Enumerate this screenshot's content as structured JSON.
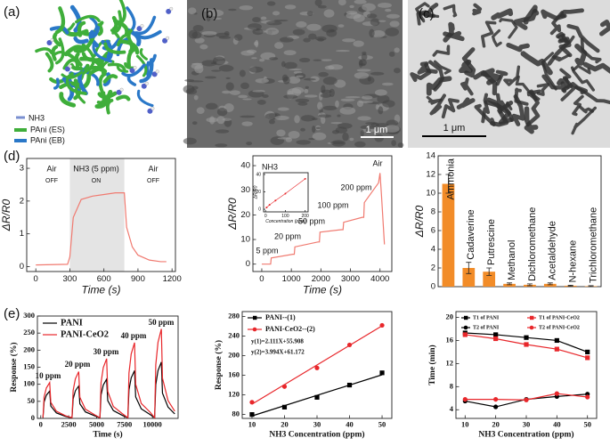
{
  "images": [
    {
      "label": "(a)",
      "legend": [
        "NH3",
        "PAni (ES)",
        "PAni (EB)"
      ]
    },
    {
      "label": "(b)",
      "scale_bar": "1 μm"
    },
    {
      "label": "(c)",
      "scale_bar": "1 μm"
    }
  ],
  "chart_data": [
    {
      "type": "line",
      "panel_label": "(d)",
      "xlabel": "Time (s)",
      "ylabel": "ΔR/R0",
      "x": [
        0,
        280,
        300,
        330,
        400,
        500,
        600,
        700,
        780,
        800,
        850,
        900,
        1000,
        1100,
        1150
      ],
      "values": [
        0.05,
        0.07,
        0.3,
        1.5,
        2.05,
        2.15,
        2.2,
        2.25,
        2.25,
        1.2,
        0.6,
        0.35,
        0.2,
        0.15,
        0.15
      ],
      "color": "#f07a70",
      "shade": [
        300,
        780
      ],
      "xlim": [
        -80,
        1230
      ],
      "xticks": [
        0,
        300,
        600,
        900,
        1200
      ],
      "ylim": [
        -0.15,
        3.3
      ],
      "yticks": [
        0,
        1,
        2,
        3
      ],
      "annotations": [
        "Air",
        "OFF",
        "NH3 (5 ppm)",
        "ON",
        "Air",
        "OFF"
      ]
    },
    {
      "type": "line",
      "xlabel": "Time (s)",
      "ylabel": "ΔR/R0",
      "x": [
        0,
        300,
        320,
        1050,
        1100,
        1120,
        1900,
        1950,
        1970,
        2700,
        2750,
        2770,
        3400,
        3450,
        3470,
        3950,
        4000,
        4050,
        4150
      ],
      "values": [
        0,
        0,
        2.5,
        4,
        4,
        7,
        9,
        9,
        13,
        14,
        14,
        17,
        19,
        19,
        25,
        33,
        37,
        28,
        8
      ],
      "color": "#f07a70",
      "xlim": [
        -300,
        4400
      ],
      "xticks": [
        0,
        1000,
        2000,
        3000,
        4000
      ],
      "ylim": [
        -3,
        44
      ],
      "yticks": [
        0,
        10,
        20,
        30,
        40
      ],
      "annotations": [
        "5 ppm",
        "20 ppm",
        "50 ppm",
        "100 ppm",
        "200 ppm",
        "Air"
      ]
    },
    {
      "type": "line",
      "title": "NH3",
      "xlabel": "Concentration (ppm)",
      "ylabel": "ΔR/R0",
      "x": [
        5,
        20,
        50,
        100,
        200
      ],
      "values": [
        2,
        5,
        10,
        18,
        35
      ],
      "color": "#e8272b",
      "marker": "circle",
      "xlim": [
        -10,
        215
      ],
      "xticks": [
        0,
        100,
        200
      ],
      "ylim": [
        -3,
        42
      ],
      "yticks": [
        0,
        20,
        40
      ]
    },
    {
      "type": "bar",
      "ylabel": "ΔR/R0",
      "categories": [
        "Ammonia",
        "Cadaverine",
        "Putrescine",
        "Methanol",
        "Dichloromethane",
        "Acetaldehyde",
        "N-hexane",
        "Trichloromethane"
      ],
      "values": [
        11,
        2,
        1.6,
        0.3,
        0.2,
        0.3,
        0.1,
        0.05
      ],
      "errors": [
        1,
        0.6,
        0.4,
        0.1,
        0.1,
        0.1,
        0.05,
        0.05
      ],
      "color": "#f28c28",
      "ylim": [
        0,
        14
      ],
      "yticks": [
        0,
        2,
        4,
        6,
        8,
        10,
        12,
        14
      ]
    },
    {
      "type": "line",
      "panel_label": "(e)",
      "xlabel": "Time (s)",
      "ylabel": "Response (%)",
      "x": [
        200,
        300,
        500,
        800,
        900,
        1400,
        2200,
        2800,
        2900,
        3100,
        3400,
        3500,
        4000,
        4800,
        5300,
        5400,
        5600,
        5900,
        6000,
        6500,
        7300,
        7800,
        7900,
        8100,
        8400,
        8500,
        9000,
        9800,
        10200,
        10300,
        10500,
        10800,
        10900,
        11400,
        12000
      ],
      "series": [
        {
          "name": "PANI",
          "color": "#000000",
          "values": [
            2,
            48,
            68,
            80,
            36,
            16,
            6,
            2,
            57,
            81,
            95,
            43,
            19,
            8,
            2,
            69,
            98,
            115,
            52,
            23,
            9,
            2,
            84,
            119,
            140,
            63,
            28,
            11,
            2,
            99,
            140,
            165,
            74,
            33,
            13
          ]
        },
        {
          "name": "PANI-CeO2",
          "color": "#e8272b",
          "values": [
            2,
            63,
            89,
            105,
            47,
            21,
            8,
            2,
            82,
            116,
            137,
            62,
            27,
            11,
            2,
            105,
            149,
            175,
            79,
            35,
            14,
            2,
            133,
            189,
            222,
            100,
            44,
            18,
            2,
            157,
            223,
            262,
            118,
            52,
            21
          ]
        }
      ],
      "xlim": [
        -300,
        12300
      ],
      "xticks": [
        0,
        2500,
        5000,
        7500,
        10000
      ],
      "ylim": [
        0,
        300
      ],
      "yticks": [
        0,
        50,
        100,
        150,
        200,
        250,
        300
      ],
      "annotations": [
        "10 ppm",
        "20 ppm",
        "30 ppm",
        "40 ppm",
        "50 ppm"
      ]
    },
    {
      "type": "scatter",
      "xlabel": "NH3 Concentration (ppm)",
      "ylabel": "Response (%)",
      "x": [
        10,
        20,
        30,
        40,
        50
      ],
      "series": [
        {
          "name": "PANI--(1)",
          "color": "#000000",
          "marker": "square",
          "values": [
            80,
            95,
            115,
            140,
            165
          ]
        },
        {
          "name": "PANI-CeO2--(2)",
          "color": "#e8272b",
          "marker": "circle",
          "values": [
            105,
            137,
            175,
            222,
            262
          ]
        }
      ],
      "fits": [
        {
          "color": "#000000",
          "x": [
            10,
            50
          ],
          "values": [
            77,
            161
          ]
        },
        {
          "color": "#e8272b",
          "x": [
            10,
            50
          ],
          "values": [
            101,
            261
          ]
        }
      ],
      "xlim": [
        7,
        53
      ],
      "xticks": [
        10,
        20,
        30,
        40,
        50
      ],
      "ylim": [
        72,
        290
      ],
      "yticks": [
        80,
        120,
        160,
        200,
        240,
        280
      ],
      "annotations": [
        "y(1)=2.111X+55.908",
        "y(2)=3.994X+61.172"
      ]
    },
    {
      "type": "line",
      "xlabel": "NH3 Concentration (ppm)",
      "ylabel": "Time (min)",
      "x": [
        10,
        20,
        30,
        40,
        50
      ],
      "series": [
        {
          "name": "T1 of PANI",
          "color": "#000000",
          "marker": "square",
          "values": [
            17.3,
            17,
            16.5,
            16,
            14
          ]
        },
        {
          "name": "T1 of PANI-CeO2",
          "color": "#e8272b",
          "marker": "square",
          "values": [
            17,
            16.3,
            15.3,
            14.5,
            13
          ]
        },
        {
          "name": "T2 of PANI",
          "color": "#000000",
          "marker": "circle",
          "values": [
            5.5,
            4.5,
            5.8,
            6.3,
            6.7
          ]
        },
        {
          "name": "T2 of PANI-CeO2",
          "color": "#e8272b",
          "marker": "circle",
          "values": [
            5.8,
            5.8,
            5.7,
            6.8,
            6.2
          ]
        }
      ],
      "xlim": [
        7,
        53
      ],
      "xticks": [
        10,
        20,
        30,
        40,
        50
      ],
      "ylim": [
        2.5,
        21
      ],
      "yticks": [
        4,
        8,
        12,
        16,
        20
      ]
    }
  ]
}
